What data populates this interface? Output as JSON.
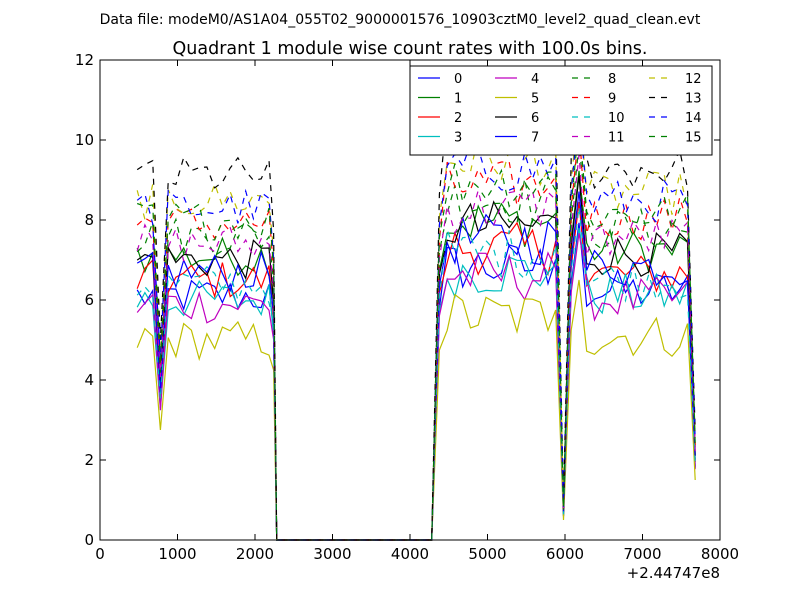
{
  "chart_data": {
    "type": "line",
    "suptitle": "Data file: modeM0/AS1A04_055T02_9000001576_10903cztM0_level2_quad_clean.evt",
    "title": "Quadrant 1 module wise count rates with 100.0s bins.",
    "xlabel": "",
    "ylabel": "",
    "x_offset_label": "+2.44747e8",
    "xlim": [
      0,
      8000
    ],
    "ylim": [
      0,
      12
    ],
    "xticks": [
      0,
      1000,
      2000,
      3000,
      4000,
      5000,
      6000,
      7000,
      8000
    ],
    "yticks": [
      0,
      2,
      4,
      6,
      8,
      10,
      12
    ],
    "grid": false,
    "legend_position": "top-right",
    "legend_columns": 4,
    "series": [
      {
        "name": "0",
        "color": "#0000ff",
        "dash": "solid",
        "level": 6.1
      },
      {
        "name": "1",
        "color": "#008000",
        "dash": "solid",
        "level": 7.1
      },
      {
        "name": "2",
        "color": "#ff0000",
        "dash": "solid",
        "level": 6.5
      },
      {
        "name": "3",
        "color": "#00bfbf",
        "dash": "solid",
        "level": 6.0
      },
      {
        "name": "4",
        "color": "#bf00bf",
        "dash": "solid",
        "level": 5.9
      },
      {
        "name": "5",
        "color": "#bfbf00",
        "dash": "solid",
        "level": 5.0
      },
      {
        "name": "6",
        "color": "#000000",
        "dash": "solid",
        "level": 7.0
      },
      {
        "name": "7",
        "color": "#0000ff",
        "dash": "solid",
        "level": 6.7
      },
      {
        "name": "8",
        "color": "#008000",
        "dash": "dashed",
        "level": 7.6
      },
      {
        "name": "9",
        "color": "#ff0000",
        "dash": "dashed",
        "level": 7.9
      },
      {
        "name": "10",
        "color": "#00bfbf",
        "dash": "dashed",
        "level": 6.4
      },
      {
        "name": "11",
        "color": "#bf00bf",
        "dash": "dashed",
        "level": 7.4
      },
      {
        "name": "12",
        "color": "#bfbf00",
        "dash": "dashed",
        "level": 8.5
      },
      {
        "name": "13",
        "color": "#000000",
        "dash": "dashed",
        "level": 9.1
      },
      {
        "name": "14",
        "color": "#0000ff",
        "dash": "dashed",
        "level": 8.3
      },
      {
        "name": "15",
        "color": "#008000",
        "dash": "dashed",
        "level": 8.0
      }
    ],
    "x_segments": [
      [
        480,
        2180
      ],
      [
        4380,
        5780
      ],
      [
        6080,
        7580
      ]
    ],
    "gap_zero_range": [
      2280,
      4280
    ],
    "dips": [
      {
        "x": 780,
        "factor": 0.55
      },
      {
        "x": 5980,
        "factor": 0.12
      },
      {
        "x": 7680,
        "factor": 0.3
      }
    ],
    "bin_size": 100
  }
}
